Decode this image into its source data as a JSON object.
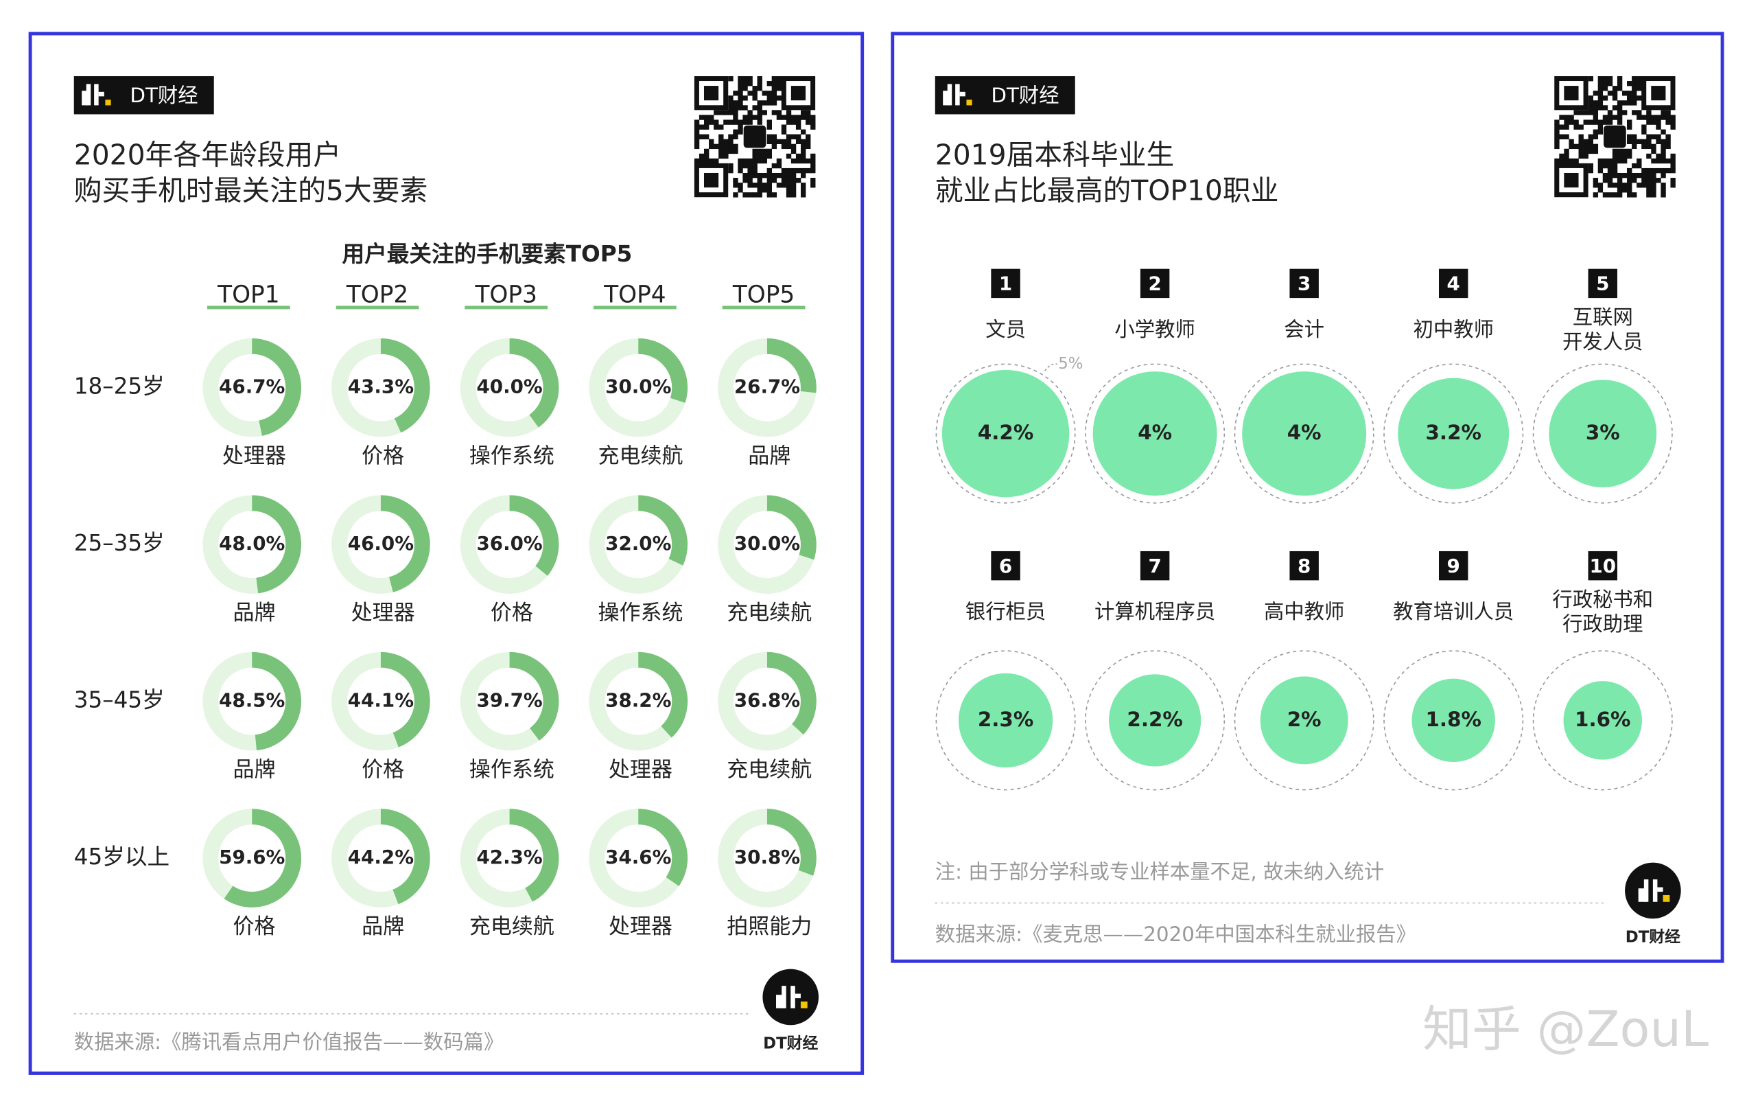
{
  "chart_data": [
    {
      "type": "donut-grid",
      "brand": "DT财经",
      "title": [
        "2020年各年龄段用户",
        "购买手机时最关注的5大要素"
      ],
      "subtitle": "用户最关注的手机要素TOP5",
      "columns": [
        "TOP1",
        "TOP2",
        "TOP3",
        "TOP4",
        "TOP5"
      ],
      "ylim": [
        0,
        100
      ],
      "rows": [
        {
          "label": "18–25岁",
          "names": [
            "处理器",
            "价格",
            "操作系统",
            "充电续航",
            "品牌"
          ],
          "values": [
            46.7,
            43.3,
            40.0,
            30.0,
            26.7
          ],
          "value_labels": [
            "46.7%",
            "43.3%",
            "40.0%",
            "30.0%",
            "26.7%"
          ]
        },
        {
          "label": "25–35岁",
          "names": [
            "品牌",
            "处理器",
            "价格",
            "操作系统",
            "充电续航"
          ],
          "values": [
            48.0,
            46.0,
            36.0,
            32.0,
            30.0
          ],
          "value_labels": [
            "48.0%",
            "46.0%",
            "36.0%",
            "32.0%",
            "30.0%"
          ]
        },
        {
          "label": "35–45岁",
          "names": [
            "品牌",
            "价格",
            "操作系统",
            "处理器",
            "充电续航"
          ],
          "values": [
            48.5,
            44.1,
            39.7,
            38.2,
            36.8
          ],
          "value_labels": [
            "48.5%",
            "44.1%",
            "39.7%",
            "38.2%",
            "36.8%"
          ]
        },
        {
          "label": "45岁以上",
          "names": [
            "价格",
            "品牌",
            "充电续航",
            "处理器",
            "拍照能力"
          ],
          "values": [
            59.6,
            44.2,
            42.3,
            34.6,
            30.8
          ],
          "value_labels": [
            "59.6%",
            "44.2%",
            "42.3%",
            "34.6%",
            "30.8%"
          ]
        }
      ],
      "color": "#79c27a",
      "track_color": "#e4f5e1",
      "source": "数据来源:《腾讯看点用户价值报告——数码篇》",
      "footer_brand": "DT财经"
    },
    {
      "type": "bubble",
      "brand": "DT财经",
      "title": [
        "2019届本科毕业生",
        "就业占比最高的TOP10职业"
      ],
      "ranks": [
        1,
        2,
        3,
        4,
        5,
        6,
        7,
        8,
        9,
        10
      ],
      "names": [
        [
          "文员"
        ],
        [
          "小学教师"
        ],
        [
          "会计"
        ],
        [
          "初中教师"
        ],
        [
          "互联网",
          "开发人员"
        ],
        [
          "银行柜员"
        ],
        [
          "计算机程序员"
        ],
        [
          "高中教师"
        ],
        [
          "教育培训人员"
        ],
        [
          "行政秘书和",
          "行政助理"
        ]
      ],
      "values": [
        4.2,
        4,
        4,
        3.2,
        3,
        2.3,
        2.2,
        2,
        1.8,
        1.6
      ],
      "value_labels": [
        "4.2%",
        "4%",
        "4%",
        "3.2%",
        "3%",
        "2.3%",
        "2.2%",
        "2%",
        "1.8%",
        "1.6%"
      ],
      "reference": {
        "value": 5,
        "label": "5%"
      },
      "color": "#7de8ac",
      "note": "注: 由于部分学科或专业样本量不足, 故未纳入统计",
      "source": "数据来源:《麦克思——2020年中国本科生就业报告》",
      "footer_brand": "DT财经"
    }
  ],
  "watermark": "知乎 @ZouL"
}
